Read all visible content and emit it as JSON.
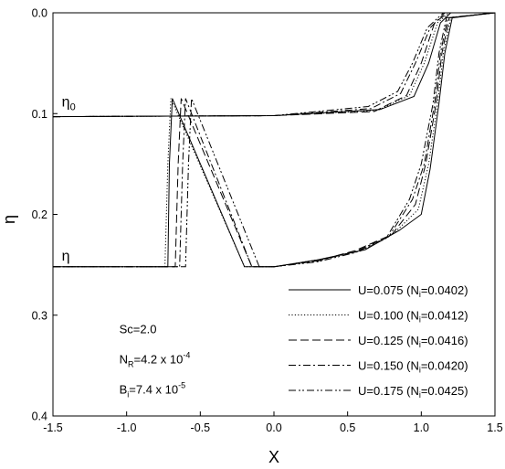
{
  "chart_data": {
    "type": "line",
    "xlabel": "X",
    "ylabel": "η",
    "xlim": [
      -1.5,
      1.5
    ],
    "ylim": [
      0.0,
      0.4
    ],
    "y_axis_inverted": true,
    "x_ticks": [
      "-1.5",
      "-1.0",
      "-0.5",
      "0.0",
      "0.5",
      "1.0",
      "1.5"
    ],
    "y_ticks": [
      "0.0",
      "0.1",
      "0.2",
      "0.3",
      "0.4"
    ],
    "grid": false,
    "legend_position": "bottom-right",
    "annotations": [
      {
        "id": "eta0",
        "main": "η",
        "sub": "0",
        "x": -1.44,
        "y": 0.093
      },
      {
        "id": "eta",
        "main": "η",
        "sub": "",
        "x": -1.44,
        "y": 0.246
      },
      {
        "id": "sc",
        "main": "Sc=2.0",
        "x": -1.05,
        "y": 0.318
      },
      {
        "id": "nr",
        "main": "N",
        "sub": "R",
        "rest": "=4.2 x 10",
        "sup": "-4",
        "x": -1.05,
        "y": 0.348
      },
      {
        "id": "bi",
        "main": "B",
        "sub": "i",
        "rest": "=7.4 x 10",
        "sup": "-5",
        "x": -1.05,
        "y": 0.378
      }
    ],
    "series": [
      {
        "name": "U=0.075 (N=0.0402)",
        "legend": {
          "pre": "U=0.075 (N",
          "sub": "i",
          "post": "=0.0402)"
        },
        "dash": "solid",
        "eta0": [
          [
            -1.5,
            0.103
          ],
          [
            0.0,
            0.102
          ],
          [
            0.72,
            0.096
          ],
          [
            0.95,
            0.083
          ],
          [
            1.05,
            0.05
          ],
          [
            1.13,
            0.01
          ],
          [
            1.2,
            0.0
          ],
          [
            1.5,
            0.0
          ]
        ],
        "eta": [
          [
            -1.5,
            0.252
          ],
          [
            -0.72,
            0.252
          ],
          [
            -0.71,
            0.15
          ],
          [
            -0.69,
            0.085
          ],
          [
            -0.2,
            0.252
          ],
          [
            0.0,
            0.252
          ],
          [
            0.3,
            0.245
          ],
          [
            0.62,
            0.235
          ],
          [
            0.85,
            0.216
          ],
          [
            1.0,
            0.2
          ],
          [
            1.06,
            0.155
          ],
          [
            1.12,
            0.09
          ],
          [
            1.16,
            0.04
          ],
          [
            1.21,
            0.005
          ],
          [
            1.5,
            0.0
          ]
        ]
      },
      {
        "name": "U=0.100 (N=0.0412)",
        "legend": {
          "pre": "U=0.100 (N",
          "sub": "i",
          "post": "=0.0412)"
        },
        "dash": "1.2 2.2",
        "eta0": [
          [
            -1.5,
            0.103
          ],
          [
            0.0,
            0.102
          ],
          [
            0.7,
            0.097
          ],
          [
            0.92,
            0.082
          ],
          [
            1.02,
            0.05
          ],
          [
            1.11,
            0.01
          ],
          [
            1.19,
            0.0
          ],
          [
            1.5,
            0.0
          ]
        ],
        "eta": [
          [
            -1.5,
            0.252
          ],
          [
            -0.74,
            0.252
          ],
          [
            -0.72,
            0.15
          ],
          [
            -0.7,
            0.085
          ],
          [
            -0.2,
            0.252
          ],
          [
            0.0,
            0.252
          ],
          [
            0.3,
            0.245
          ],
          [
            0.6,
            0.236
          ],
          [
            0.82,
            0.218
          ],
          [
            0.98,
            0.195
          ],
          [
            1.05,
            0.15
          ],
          [
            1.11,
            0.09
          ],
          [
            1.15,
            0.04
          ],
          [
            1.2,
            0.005
          ],
          [
            1.5,
            0.0
          ]
        ]
      },
      {
        "name": "U=0.125 (N=0.0416)",
        "legend": {
          "pre": "U=0.125 (N",
          "sub": "i",
          "post": "=0.0416)"
        },
        "dash": "9 4",
        "eta0": [
          [
            -1.5,
            0.103
          ],
          [
            0.0,
            0.102
          ],
          [
            0.68,
            0.098
          ],
          [
            0.9,
            0.082
          ],
          [
            1.0,
            0.05
          ],
          [
            1.09,
            0.01
          ],
          [
            1.18,
            0.0
          ],
          [
            1.5,
            0.0
          ]
        ],
        "eta": [
          [
            -1.5,
            0.252
          ],
          [
            -0.67,
            0.252
          ],
          [
            -0.65,
            0.15
          ],
          [
            -0.63,
            0.085
          ],
          [
            -0.15,
            0.252
          ],
          [
            0.0,
            0.252
          ],
          [
            0.3,
            0.246
          ],
          [
            0.55,
            0.236
          ],
          [
            0.8,
            0.22
          ],
          [
            0.96,
            0.19
          ],
          [
            1.03,
            0.15
          ],
          [
            1.1,
            0.09
          ],
          [
            1.14,
            0.04
          ],
          [
            1.19,
            0.005
          ],
          [
            1.5,
            0.0
          ]
        ]
      },
      {
        "name": "U=0.150 (N=0.0420)",
        "legend": {
          "pre": "U=0.150 (N",
          "sub": "i",
          "post": "=0.0420)"
        },
        "dash": "8 3 2 3",
        "eta0": [
          [
            -1.5,
            0.103
          ],
          [
            0.0,
            0.102
          ],
          [
            0.66,
            0.095
          ],
          [
            0.86,
            0.08
          ],
          [
            0.96,
            0.05
          ],
          [
            1.06,
            0.015
          ],
          [
            1.16,
            0.0
          ],
          [
            1.5,
            0.0
          ]
        ],
        "eta": [
          [
            -1.5,
            0.252
          ],
          [
            -0.64,
            0.252
          ],
          [
            -0.62,
            0.15
          ],
          [
            -0.6,
            0.085
          ],
          [
            -0.15,
            0.252
          ],
          [
            0.0,
            0.252
          ],
          [
            0.3,
            0.246
          ],
          [
            0.55,
            0.237
          ],
          [
            0.78,
            0.222
          ],
          [
            0.94,
            0.185
          ],
          [
            1.02,
            0.15
          ],
          [
            1.09,
            0.09
          ],
          [
            1.13,
            0.04
          ],
          [
            1.18,
            0.005
          ],
          [
            1.5,
            0.0
          ]
        ]
      },
      {
        "name": "U=0.175 (N=0.0425)",
        "legend": {
          "pre": "U=0.175 (N",
          "sub": "i",
          "post": "=0.0425)"
        },
        "dash": "8 3 2 2 2 3",
        "eta0": [
          [
            -1.5,
            0.103
          ],
          [
            0.0,
            0.102
          ],
          [
            0.64,
            0.093
          ],
          [
            0.84,
            0.078
          ],
          [
            0.94,
            0.05
          ],
          [
            1.04,
            0.015
          ],
          [
            1.15,
            0.0
          ],
          [
            1.5,
            0.0
          ]
        ],
        "eta": [
          [
            -1.5,
            0.252
          ],
          [
            -0.6,
            0.252
          ],
          [
            -0.58,
            0.15
          ],
          [
            -0.56,
            0.085
          ],
          [
            -0.1,
            0.252
          ],
          [
            0.0,
            0.252
          ],
          [
            0.3,
            0.247
          ],
          [
            0.55,
            0.238
          ],
          [
            0.76,
            0.224
          ],
          [
            0.92,
            0.185
          ],
          [
            1.0,
            0.15
          ],
          [
            1.08,
            0.09
          ],
          [
            1.12,
            0.04
          ],
          [
            1.17,
            0.005
          ],
          [
            1.5,
            0.0
          ]
        ]
      }
    ]
  }
}
